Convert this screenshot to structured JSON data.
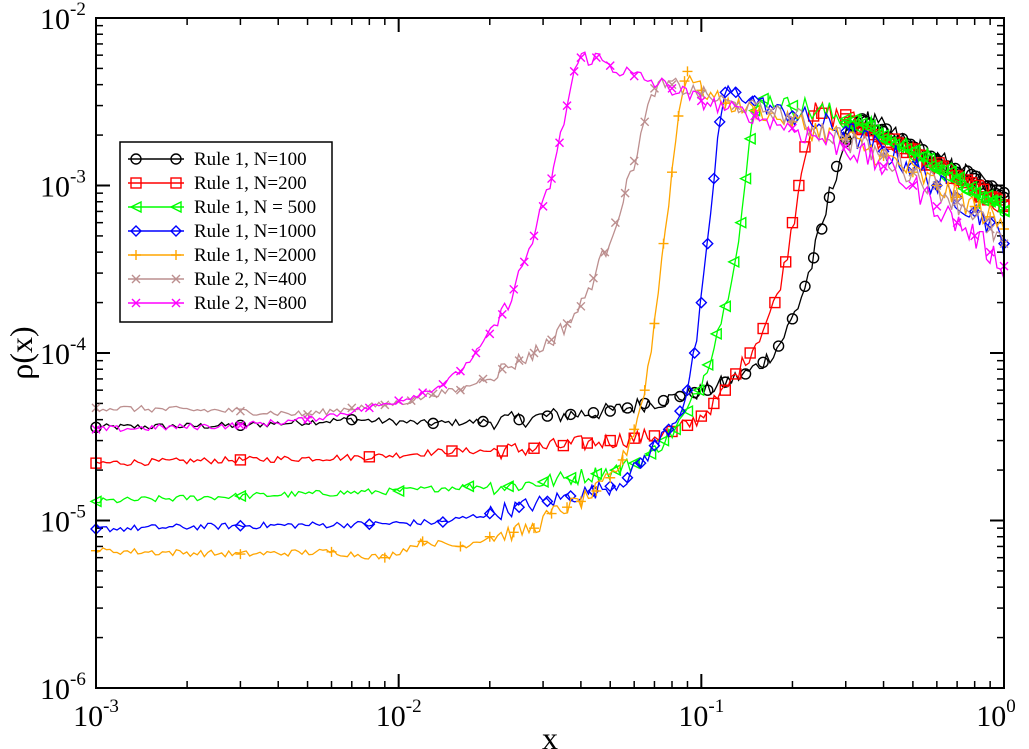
{
  "chart_data": {
    "type": "line",
    "title": "",
    "xlabel": "x",
    "ylabel": "ρ(x)",
    "xscale": "log",
    "yscale": "log",
    "xlim": [
      0.001,
      1
    ],
    "ylim": [
      1e-06,
      0.01
    ],
    "x_ticks": [
      {
        "value": 0.001,
        "base": "10",
        "exp": "-3"
      },
      {
        "value": 0.01,
        "base": "10",
        "exp": "-2"
      },
      {
        "value": 0.1,
        "base": "10",
        "exp": "-1"
      },
      {
        "value": 1,
        "base": "10",
        "exp": "0"
      }
    ],
    "y_ticks": [
      {
        "value": 1e-06,
        "base": "10",
        "exp": "-6"
      },
      {
        "value": 1e-05,
        "base": "10",
        "exp": "-5"
      },
      {
        "value": 0.0001,
        "base": "10",
        "exp": "-4"
      },
      {
        "value": 0.001,
        "base": "10",
        "exp": "-3"
      },
      {
        "value": 0.01,
        "base": "10",
        "exp": "-2"
      }
    ],
    "legend_position": "upper-left",
    "series": [
      {
        "name": "Rule 1, N=100",
        "color": "#000000",
        "marker": "circle",
        "x": [
          0.001,
          0.003,
          0.007,
          0.013,
          0.019,
          0.025,
          0.031,
          0.037,
          0.044,
          0.05,
          0.057,
          0.065,
          0.075,
          0.085,
          0.095,
          0.105,
          0.12,
          0.14,
          0.16,
          0.18,
          0.2,
          0.22,
          0.235,
          0.25,
          0.265,
          0.28,
          0.3,
          0.32,
          0.34,
          0.4,
          0.5,
          0.6,
          0.7,
          0.8,
          0.9,
          1.0
        ],
        "y": [
          3.6e-05,
          3.7e-05,
          4e-05,
          3.8e-05,
          3.9e-05,
          4e-05,
          4.2e-05,
          4.3e-05,
          4.4e-05,
          4.5e-05,
          4.7e-05,
          5e-05,
          5.2e-05,
          5.5e-05,
          5.8e-05,
          6e-05,
          6.7e-05,
          7.5e-05,
          8.8e-05,
          0.00011,
          0.00016,
          0.00025,
          0.00037,
          0.00055,
          0.00085,
          0.0013,
          0.0019,
          0.0024,
          0.0025,
          0.0021,
          0.0017,
          0.0014,
          0.0012,
          0.0011,
          0.00095,
          0.00085
        ]
      },
      {
        "name": "Rule 1, N=200",
        "color": "#ff0000",
        "marker": "square",
        "x": [
          0.001,
          0.003,
          0.008,
          0.015,
          0.022,
          0.028,
          0.035,
          0.042,
          0.05,
          0.06,
          0.07,
          0.08,
          0.09,
          0.1,
          0.11,
          0.12,
          0.13,
          0.145,
          0.16,
          0.175,
          0.19,
          0.2,
          0.21,
          0.22,
          0.235,
          0.25,
          0.3,
          0.4,
          0.5,
          0.6,
          0.7,
          0.8,
          0.9,
          1.0
        ],
        "y": [
          2.2e-05,
          2.3e-05,
          2.4e-05,
          2.6e-05,
          2.6e-05,
          2.7e-05,
          2.8e-05,
          2.9e-05,
          3e-05,
          3.1e-05,
          3.2e-05,
          3.4e-05,
          3.7e-05,
          4.2e-05,
          5e-05,
          6e-05,
          7.5e-05,
          0.0001,
          0.00014,
          0.0002,
          0.00035,
          0.0006,
          0.001,
          0.0017,
          0.0026,
          0.0027,
          0.0025,
          0.0019,
          0.0016,
          0.0013,
          0.0011,
          0.00095,
          0.00085,
          0.00075
        ]
      },
      {
        "name": "Rule 1, N = 500",
        "color": "#00ff00",
        "marker": "triangle-left",
        "x": [
          0.001,
          0.003,
          0.01,
          0.017,
          0.023,
          0.03,
          0.037,
          0.045,
          0.052,
          0.06,
          0.068,
          0.075,
          0.082,
          0.09,
          0.098,
          0.105,
          0.112,
          0.12,
          0.128,
          0.135,
          0.14,
          0.145,
          0.15,
          0.16,
          0.2,
          0.3,
          0.4,
          0.5,
          0.6,
          0.7,
          0.8,
          0.9,
          1.0
        ],
        "y": [
          1.3e-05,
          1.4e-05,
          1.5e-05,
          1.6e-05,
          1.6e-05,
          1.7e-05,
          1.8e-05,
          1.9e-05,
          2e-05,
          2.2e-05,
          2.5e-05,
          3e-05,
          3.5e-05,
          4.5e-05,
          6e-05,
          8.5e-05,
          0.00013,
          0.00019,
          0.00035,
          0.0006,
          0.0011,
          0.0019,
          0.0028,
          0.0033,
          0.003,
          0.0025,
          0.002,
          0.0016,
          0.0013,
          0.0011,
          0.0009,
          0.0008,
          0.0007
        ]
      },
      {
        "name": "Rule 1, N=1000",
        "color": "#0000ff",
        "marker": "diamond",
        "x": [
          0.001,
          0.003,
          0.008,
          0.014,
          0.02,
          0.025,
          0.031,
          0.037,
          0.044,
          0.05,
          0.057,
          0.063,
          0.07,
          0.078,
          0.085,
          0.09,
          0.095,
          0.1,
          0.105,
          0.11,
          0.115,
          0.12,
          0.13,
          0.15,
          0.2,
          0.3,
          0.4,
          0.5,
          0.6,
          0.7,
          0.8,
          0.9,
          1.0
        ],
        "y": [
          8.9e-06,
          9.3e-06,
          9.5e-06,
          9.8e-06,
          1.1e-05,
          1.2e-05,
          1.3e-05,
          1.4e-05,
          1.5e-05,
          1.6e-05,
          1.8e-05,
          2.2e-05,
          2.8e-05,
          3.5e-05,
          4.5e-05,
          6e-05,
          0.0001,
          0.0002,
          0.00045,
          0.0011,
          0.0024,
          0.0036,
          0.0036,
          0.0032,
          0.0026,
          0.0021,
          0.0016,
          0.0013,
          0.001,
          0.00085,
          0.0007,
          0.0006,
          0.00045
        ]
      },
      {
        "name": "Rule 1, N=2000",
        "color": "#ffa500",
        "marker": "plus",
        "x": [
          0.001,
          0.003,
          0.006,
          0.009,
          0.012,
          0.016,
          0.02,
          0.024,
          0.028,
          0.032,
          0.036,
          0.04,
          0.045,
          0.05,
          0.055,
          0.06,
          0.065,
          0.07,
          0.075,
          0.08,
          0.084,
          0.088,
          0.09,
          0.1,
          0.12,
          0.15,
          0.2,
          0.3,
          0.4,
          0.5,
          0.6,
          0.7,
          0.8,
          0.9,
          1.0
        ],
        "y": [
          6.6e-06,
          6.3e-06,
          6.5e-06,
          6e-06,
          7.5e-06,
          7e-06,
          8e-06,
          8.5e-06,
          9e-06,
          1.1e-05,
          1.2e-05,
          1.3e-05,
          1.5e-05,
          1.8e-05,
          2.3e-05,
          3.5e-05,
          6e-05,
          0.00015,
          0.00045,
          0.0012,
          0.0026,
          0.0042,
          0.0048,
          0.0037,
          0.0031,
          0.0028,
          0.0024,
          0.0019,
          0.0015,
          0.0012,
          0.001,
          0.00085,
          0.00075,
          0.00065,
          0.00055
        ]
      },
      {
        "name": "Rule 2, N=400",
        "color": "#bc8f8f",
        "marker": "x",
        "x": [
          0.001,
          0.003,
          0.005,
          0.007,
          0.009,
          0.011,
          0.013,
          0.016,
          0.019,
          0.022,
          0.025,
          0.028,
          0.032,
          0.036,
          0.04,
          0.044,
          0.048,
          0.052,
          0.056,
          0.06,
          0.065,
          0.07,
          0.08,
          0.1,
          0.13,
          0.17,
          0.2,
          0.3,
          0.4,
          0.5,
          0.6,
          0.7,
          0.8,
          0.9,
          1.0
        ],
        "y": [
          4.7e-05,
          4.5e-05,
          4.3e-05,
          4.7e-05,
          4.9e-05,
          5.2e-05,
          5.7e-05,
          6e-05,
          7e-05,
          8e-05,
          9e-05,
          0.0001,
          0.00012,
          0.00015,
          0.00019,
          0.00028,
          0.0004,
          0.0006,
          0.0009,
          0.0014,
          0.0024,
          0.0038,
          0.004,
          0.0035,
          0.003,
          0.0028,
          0.0025,
          0.0019,
          0.0015,
          0.0012,
          0.001,
          0.0008,
          0.0007,
          0.00055,
          0.00045
        ]
      },
      {
        "name": "Rule 2, N=800",
        "color": "#ff00ff",
        "marker": "x",
        "x": [
          0.001,
          0.003,
          0.005,
          0.008,
          0.01,
          0.012,
          0.014,
          0.016,
          0.018,
          0.02,
          0.022,
          0.024,
          0.026,
          0.028,
          0.03,
          0.032,
          0.034,
          0.036,
          0.038,
          0.04,
          0.045,
          0.05,
          0.06,
          0.08,
          0.1,
          0.15,
          0.2,
          0.3,
          0.4,
          0.5,
          0.6,
          0.7,
          0.8,
          0.9,
          1.0
        ],
        "y": [
          3.5e-05,
          3.7e-05,
          4e-05,
          4.7e-05,
          5.2e-05,
          5.8e-05,
          6.5e-05,
          7.8e-05,
          0.0001,
          0.00013,
          0.00017,
          0.00024,
          0.00035,
          0.0005,
          0.00075,
          0.0011,
          0.0018,
          0.003,
          0.0048,
          0.0058,
          0.0058,
          0.0052,
          0.0045,
          0.0038,
          0.0032,
          0.0026,
          0.0022,
          0.0017,
          0.0013,
          0.001,
          0.00075,
          0.0006,
          0.0005,
          0.0004,
          0.00033
        ]
      }
    ]
  }
}
